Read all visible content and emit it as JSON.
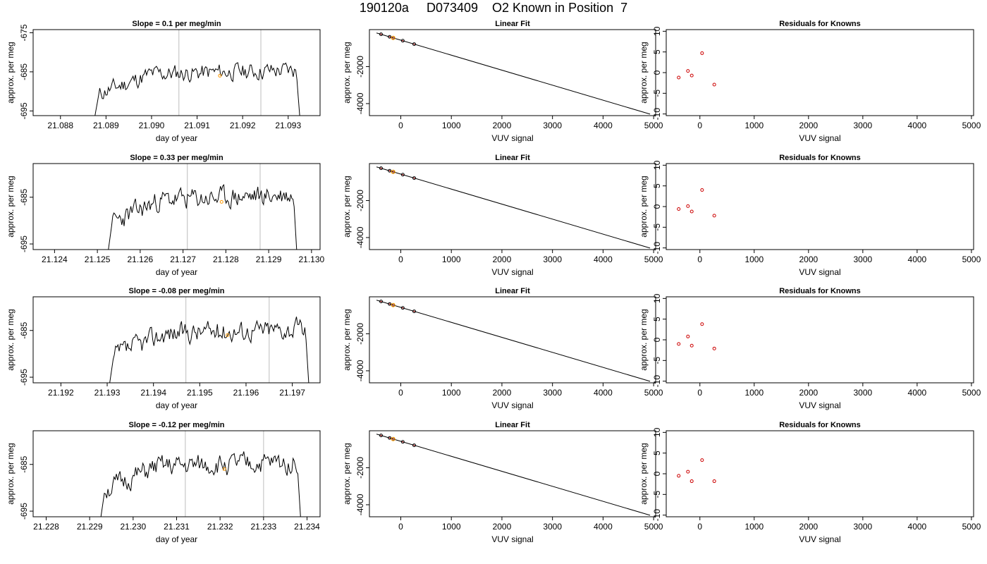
{
  "title": "190120a     D073409    O2 Known in Position  7",
  "colors": {
    "line": "#000000",
    "frame": "#000000",
    "vline": "#c8c8c8",
    "highlight": "#ff9900",
    "resid": "#cc0000"
  },
  "chart_data": [
    {
      "type": "line",
      "title": "Slope =  0.1  per meg/min",
      "xlabel": "day of year",
      "ylabel": "approx. per meg",
      "xlim": [
        21.0874,
        21.0937
      ],
      "ylim": [
        -696.2,
        -674.2
      ],
      "xticks": [
        "21.088",
        "21.089",
        "21.090",
        "21.091",
        "21.092",
        "21.093"
      ],
      "yticks": [
        "-675",
        "-685",
        "-695"
      ],
      "vlines": [
        21.0906,
        21.0924
      ],
      "highlight_x": 21.0915,
      "x_range": [
        21.0887,
        21.0933
      ],
      "seed": 11
    },
    {
      "type": "line",
      "title": "Linear Fit",
      "xlabel": "VUV signal",
      "ylabel": "approx. per meg",
      "xlim": [
        -620,
        5040
      ],
      "ylim": [
        -4650,
        0
      ],
      "xticks": [
        "0",
        "1000",
        "2000",
        "3000",
        "4000",
        "5000"
      ],
      "yticks": [
        "-2000",
        "-4000"
      ],
      "line": {
        "x": [
          -480,
          4930
        ],
        "y": [
          -180,
          -4570
        ]
      },
      "points": [
        {
          "x": -390,
          "y": -252
        },
        {
          "x": -220,
          "y": -390
        },
        {
          "x": -150,
          "y": -447
        },
        {
          "x": 40,
          "y": -601
        },
        {
          "x": 265,
          "y": -784
        }
      ],
      "highlight_points": [
        {
          "x": -150,
          "y": -447
        }
      ]
    },
    {
      "type": "scatter",
      "title": "Residuals for Knowns",
      "xlabel": "VUV signal",
      "ylabel": "approx. per meg",
      "xlim": [
        -620,
        5040
      ],
      "ylim": [
        -10.4,
        10.4
      ],
      "xticks": [
        "0",
        "1000",
        "2000",
        "3000",
        "4000",
        "5000"
      ],
      "yticks": [
        "-10",
        "-5",
        "0",
        "5",
        "10"
      ],
      "points": [
        {
          "x": -390,
          "y": -1.2
        },
        {
          "x": -220,
          "y": 0.4
        },
        {
          "x": -150,
          "y": -0.7
        },
        {
          "x": 40,
          "y": 4.7
        },
        {
          "x": 265,
          "y": -2.9
        }
      ]
    },
    {
      "type": "line",
      "title": "Slope =  0.33  per meg/min",
      "xlabel": "day of year",
      "ylabel": "approx. per meg",
      "xlim": [
        21.1235,
        21.1302
      ],
      "ylim": [
        -696.2,
        -677.8
      ],
      "xticks": [
        "21.124",
        "21.125",
        "21.126",
        "21.127",
        "21.128",
        "21.129",
        "21.130"
      ],
      "yticks": [
        "-685",
        "-695"
      ],
      "vlines": [
        21.1271,
        21.1288
      ],
      "highlight_x": 21.1279,
      "x_range": [
        21.1252,
        21.1297
      ],
      "seed": 23
    },
    {
      "type": "line",
      "title": "Linear Fit",
      "xlabel": "VUV signal",
      "ylabel": "approx. per meg",
      "xlim": [
        -620,
        5040
      ],
      "ylim": [
        -4650,
        0
      ],
      "xticks": [
        "0",
        "1000",
        "2000",
        "3000",
        "4000",
        "5000"
      ],
      "yticks": [
        "-2000",
        "-4000"
      ],
      "line": {
        "x": [
          -480,
          4930
        ],
        "y": [
          -180,
          -4570
        ]
      },
      "points": [
        {
          "x": -390,
          "y": -252
        },
        {
          "x": -220,
          "y": -390
        },
        {
          "x": -150,
          "y": -447
        },
        {
          "x": 40,
          "y": -601
        },
        {
          "x": 265,
          "y": -784
        }
      ],
      "highlight_points": [
        {
          "x": -150,
          "y": -447
        }
      ]
    },
    {
      "type": "scatter",
      "title": "Residuals for Knowns",
      "xlabel": "VUV signal",
      "ylabel": "approx. per meg",
      "xlim": [
        -620,
        5040
      ],
      "ylim": [
        -10.4,
        10.4
      ],
      "xticks": [
        "0",
        "1000",
        "2000",
        "3000",
        "4000",
        "5000"
      ],
      "yticks": [
        "-10",
        "-5",
        "0",
        "5",
        "10"
      ],
      "points": [
        {
          "x": -390,
          "y": -0.6
        },
        {
          "x": -220,
          "y": 0.1
        },
        {
          "x": -150,
          "y": -1.2
        },
        {
          "x": 40,
          "y": 4.0
        },
        {
          "x": 265,
          "y": -2.2
        }
      ]
    },
    {
      "type": "line",
      "title": "Slope =  -0.08  per meg/min",
      "xlabel": "day of year",
      "ylabel": "approx. per meg",
      "xlim": [
        21.1914,
        21.1976
      ],
      "ylim": [
        -696.2,
        -677.8
      ],
      "xticks": [
        "21.192",
        "21.193",
        "21.194",
        "21.195",
        "21.196",
        "21.197"
      ],
      "yticks": [
        "-685",
        "-695"
      ],
      "vlines": [
        21.1947,
        21.1965
      ],
      "highlight_x": 21.1956,
      "x_range": [
        21.193,
        21.1974
      ],
      "seed": 37
    },
    {
      "type": "line",
      "title": "Linear Fit",
      "xlabel": "VUV signal",
      "ylabel": "approx. per meg",
      "xlim": [
        -620,
        5040
      ],
      "ylim": [
        -4650,
        0
      ],
      "xticks": [
        "0",
        "1000",
        "2000",
        "3000",
        "4000",
        "5000"
      ],
      "yticks": [
        "-2000",
        "-4000"
      ],
      "line": {
        "x": [
          -480,
          4930
        ],
        "y": [
          -180,
          -4570
        ]
      },
      "points": [
        {
          "x": -390,
          "y": -252
        },
        {
          "x": -220,
          "y": -390
        },
        {
          "x": -150,
          "y": -447
        },
        {
          "x": 40,
          "y": -601
        },
        {
          "x": 265,
          "y": -784
        }
      ],
      "highlight_points": [
        {
          "x": -150,
          "y": -447
        }
      ]
    },
    {
      "type": "scatter",
      "title": "Residuals for Knowns",
      "xlabel": "VUV signal",
      "ylabel": "approx. per meg",
      "xlim": [
        -620,
        5040
      ],
      "ylim": [
        -10.4,
        10.4
      ],
      "xticks": [
        "0",
        "1000",
        "2000",
        "3000",
        "4000",
        "5000"
      ],
      "yticks": [
        "-10",
        "-5",
        "0",
        "5",
        "10"
      ],
      "points": [
        {
          "x": -390,
          "y": -1.0
        },
        {
          "x": -220,
          "y": 0.8
        },
        {
          "x": -150,
          "y": -1.4
        },
        {
          "x": 40,
          "y": 3.8
        },
        {
          "x": 265,
          "y": -2.1
        }
      ]
    },
    {
      "type": "line",
      "title": "Slope =  -0.12  per meg/min",
      "xlabel": "day of year",
      "ylabel": "approx. per meg",
      "xlim": [
        21.2277,
        21.2343
      ],
      "ylim": [
        -696.2,
        -677.8
      ],
      "xticks": [
        "21.228",
        "21.229",
        "21.230",
        "21.231",
        "21.232",
        "21.233",
        "21.234"
      ],
      "yticks": [
        "-685",
        "-695"
      ],
      "vlines": [
        21.2312,
        21.233
      ],
      "highlight_x": 21.2321,
      "x_range": [
        21.2292,
        21.2339
      ],
      "seed": 51
    },
    {
      "type": "line",
      "title": "Linear Fit",
      "xlabel": "VUV signal",
      "ylabel": "approx. per meg",
      "xlim": [
        -620,
        5040
      ],
      "ylim": [
        -4650,
        0
      ],
      "xticks": [
        "0",
        "1000",
        "2000",
        "3000",
        "4000",
        "5000"
      ],
      "yticks": [
        "-2000",
        "-4000"
      ],
      "line": {
        "x": [
          -480,
          4930
        ],
        "y": [
          -180,
          -4570
        ]
      },
      "points": [
        {
          "x": -390,
          "y": -252
        },
        {
          "x": -220,
          "y": -390
        },
        {
          "x": -150,
          "y": -447
        },
        {
          "x": 40,
          "y": -601
        },
        {
          "x": 265,
          "y": -784
        }
      ],
      "highlight_points": [
        {
          "x": -150,
          "y": -447
        }
      ]
    },
    {
      "type": "scatter",
      "title": "Residuals for Knowns",
      "xlabel": "VUV signal",
      "ylabel": "approx. per meg",
      "xlim": [
        -620,
        5040
      ],
      "ylim": [
        -10.4,
        10.4
      ],
      "xticks": [
        "0",
        "1000",
        "2000",
        "3000",
        "4000",
        "5000"
      ],
      "yticks": [
        "-10",
        "-5",
        "0",
        "5",
        "10"
      ],
      "points": [
        {
          "x": -390,
          "y": -0.5
        },
        {
          "x": -220,
          "y": 0.5
        },
        {
          "x": -150,
          "y": -1.8
        },
        {
          "x": 40,
          "y": 3.3
        },
        {
          "x": 265,
          "y": -1.8
        }
      ]
    }
  ]
}
